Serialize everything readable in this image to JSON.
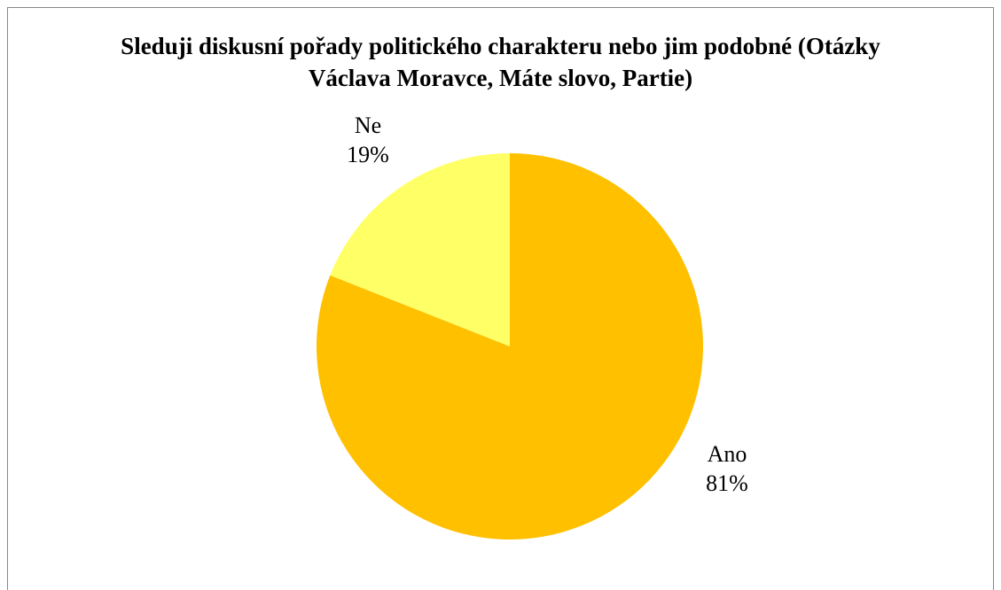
{
  "chart_data": {
    "type": "pie",
    "title": "Sleduji diskusní pořady politického charakteru nebo jim podobné (Otázky Václava Moravce, Máte slovo, Partie)",
    "categories": [
      "Ano",
      "Ne"
    ],
    "values": [
      81,
      19
    ],
    "value_labels": [
      "81%",
      "19%"
    ],
    "colors": [
      "#ffc000",
      "#ffff66"
    ]
  }
}
